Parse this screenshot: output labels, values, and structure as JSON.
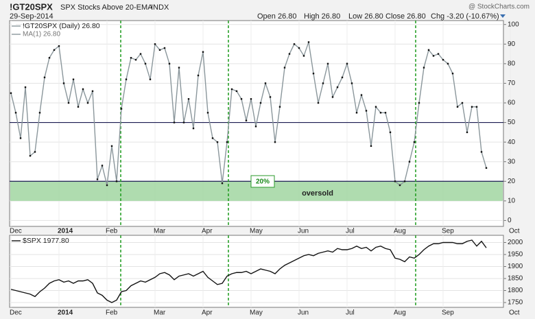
{
  "header": {
    "symbol": "!GT20SPX",
    "description": "SPX Stocks Above 20-EMA",
    "exchange": "INDX",
    "date": "29-Sep-2014",
    "watermark": "@ StockCharts.com",
    "quote": [
      "Open 26.80",
      "High 26.80",
      "Low 26.80",
      "Close 26.80",
      "Chg -3.20 (-10.67%)"
    ]
  },
  "chart_data": [
    {
      "type": "line",
      "categories": [
        "Dec",
        null,
        null,
        null,
        null,
        null,
        null,
        null,
        null,
        null,
        "2014",
        null,
        null,
        null,
        null,
        null,
        null,
        null,
        null,
        null,
        "Feb",
        null,
        null,
        null,
        null,
        null,
        null,
        null,
        null,
        null,
        "Mar",
        null,
        null,
        null,
        null,
        null,
        null,
        null,
        null,
        null,
        "Apr",
        null,
        null,
        null,
        null,
        null,
        null,
        null,
        null,
        null,
        "May",
        null,
        null,
        null,
        null,
        null,
        null,
        null,
        null,
        null,
        "Jun",
        null,
        null,
        null,
        null,
        null,
        null,
        null,
        null,
        null,
        "Jul",
        null,
        null,
        null,
        null,
        null,
        null,
        null,
        null,
        null,
        "Aug",
        null,
        null,
        null,
        null,
        null,
        null,
        null,
        null,
        null,
        "Sep",
        null,
        null,
        null,
        null,
        null,
        null,
        null,
        null,
        null,
        null,
        null,
        null,
        null,
        "Oct"
      ],
      "series": [
        {
          "name": "!GT20SPX (Daily) 26.80",
          "color": "#8a969b",
          "markers": true,
          "values": [
            65,
            55,
            42,
            68,
            33,
            35,
            55,
            73,
            83,
            87,
            89,
            70,
            60,
            72,
            58,
            67,
            60,
            66,
            21,
            28,
            18,
            38,
            20,
            57,
            72,
            83,
            82,
            85,
            80,
            72,
            90,
            87,
            88,
            80,
            50,
            78,
            50,
            62,
            47,
            74,
            86,
            55,
            42,
            40,
            19,
            40,
            67,
            66,
            62,
            51,
            62,
            48,
            60,
            70,
            63,
            40,
            58,
            78,
            85,
            90,
            88,
            84,
            91,
            75,
            60,
            70,
            80,
            63,
            68,
            73,
            80,
            70,
            55,
            64,
            56,
            38,
            58,
            55,
            55,
            45,
            20,
            18,
            20,
            30,
            40,
            60,
            78,
            87,
            84,
            85,
            82,
            80,
            75,
            58,
            60,
            45,
            58,
            58,
            35,
            26.8,
            null,
            null,
            null,
            null,
            null
          ]
        }
      ],
      "ma_label": "MA(1) 26.80",
      "ylim": [
        -3,
        102
      ],
      "yticks": [
        0,
        10,
        20,
        30,
        40,
        50,
        60,
        70,
        80,
        90,
        100
      ],
      "grid": true,
      "hlines": [
        50,
        20
      ],
      "band": [
        10,
        20
      ],
      "band_color": "#a6d8a6",
      "annotations": [
        "20%",
        "oversold"
      ]
    },
    {
      "type": "line",
      "categories": [
        "Dec",
        null,
        null,
        null,
        null,
        null,
        null,
        null,
        null,
        null,
        "2014",
        null,
        null,
        null,
        null,
        null,
        null,
        null,
        null,
        null,
        "Feb",
        null,
        null,
        null,
        null,
        null,
        null,
        null,
        null,
        null,
        "Mar",
        null,
        null,
        null,
        null,
        null,
        null,
        null,
        null,
        null,
        "Apr",
        null,
        null,
        null,
        null,
        null,
        null,
        null,
        null,
        null,
        "May",
        null,
        null,
        null,
        null,
        null,
        null,
        null,
        null,
        null,
        "Jun",
        null,
        null,
        null,
        null,
        null,
        null,
        null,
        null,
        null,
        "Jul",
        null,
        null,
        null,
        null,
        null,
        null,
        null,
        null,
        null,
        "Aug",
        null,
        null,
        null,
        null,
        null,
        null,
        null,
        null,
        null,
        "Sep",
        null,
        null,
        null,
        null,
        null,
        null,
        null,
        null,
        null,
        null,
        null,
        null,
        null,
        "Oct"
      ],
      "series": [
        {
          "name": "$SPX 1977.80",
          "color": "#111111",
          "markers": false,
          "values": [
            1805,
            1800,
            1795,
            1790,
            1785,
            1775,
            1795,
            1810,
            1830,
            1840,
            1845,
            1835,
            1840,
            1830,
            1840,
            1840,
            1845,
            1830,
            1790,
            1780,
            1760,
            1750,
            1760,
            1795,
            1800,
            1820,
            1830,
            1840,
            1835,
            1845,
            1855,
            1870,
            1875,
            1865,
            1845,
            1860,
            1865,
            1870,
            1860,
            1870,
            1880,
            1855,
            1840,
            1825,
            1830,
            1860,
            1870,
            1875,
            1875,
            1880,
            1870,
            1880,
            1890,
            1885,
            1880,
            1870,
            1890,
            1905,
            1915,
            1925,
            1935,
            1945,
            1950,
            1945,
            1955,
            1960,
            1965,
            1960,
            1975,
            1970,
            1970,
            1975,
            1985,
            1975,
            1980,
            1965,
            1980,
            1985,
            1975,
            1970,
            1935,
            1930,
            1920,
            1940,
            1935,
            1950,
            1970,
            1985,
            1995,
            1995,
            2000,
            2000,
            2000,
            1995,
            1995,
            2005,
            2010,
            1985,
            2005,
            1977.8,
            null,
            null,
            null,
            null,
            null
          ]
        }
      ],
      "ylim": [
        1730,
        2030
      ],
      "yticks": [
        1750,
        1800,
        1850,
        1900,
        1950,
        2000
      ],
      "grid": true
    }
  ]
}
